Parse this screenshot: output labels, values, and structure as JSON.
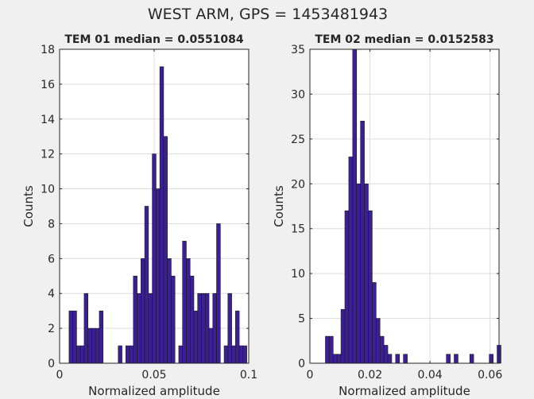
{
  "figure": {
    "suptitle": "WEST ARM, GPS = 1453481943"
  },
  "colors": {
    "bar_fill": "#3b1f96",
    "bar_edge": "#1a1a1a",
    "grid": "#dcdcdc",
    "axes_bg": "#ffffff",
    "figure_bg": "#f0f0f0"
  },
  "chart_data": [
    {
      "type": "bar",
      "title": "TEM 01 median = 0.0551084",
      "xlabel": "Normalized amplitude",
      "ylabel": "Counts",
      "xlim": [
        0,
        0.1
      ],
      "ylim": [
        0,
        18
      ],
      "xticks": [
        "0",
        "0.05",
        "0.1"
      ],
      "yticks": [
        "0",
        "2",
        "4",
        "6",
        "8",
        "10",
        "12",
        "14",
        "16",
        "18"
      ],
      "grid": true,
      "bin_width": 0.002,
      "x": [
        0.006,
        0.008,
        0.01,
        0.012,
        0.014,
        0.016,
        0.018,
        0.02,
        0.022,
        0.024,
        0.026,
        0.028,
        0.03,
        0.032,
        0.034,
        0.036,
        0.038,
        0.04,
        0.042,
        0.044,
        0.046,
        0.048,
        0.05,
        0.052,
        0.054,
        0.056,
        0.058,
        0.06,
        0.062,
        0.064,
        0.066,
        0.068,
        0.07,
        0.072,
        0.074,
        0.076,
        0.078,
        0.08,
        0.082,
        0.084,
        0.086,
        0.088,
        0.09,
        0.092,
        0.094,
        0.096,
        0.098
      ],
      "values": [
        3,
        3,
        1,
        1,
        4,
        2,
        2,
        2,
        3,
        0,
        0,
        0,
        0,
        1,
        0,
        1,
        1,
        5,
        4,
        6,
        9,
        4,
        12,
        10,
        17,
        13,
        6,
        5,
        0,
        1,
        7,
        6,
        5,
        3,
        4,
        4,
        4,
        2,
        4,
        8,
        0,
        1,
        4,
        1,
        3,
        1,
        1
      ]
    },
    {
      "type": "bar",
      "title": "TEM 02 median = 0.0152583",
      "xlabel": "Normalized amplitude",
      "ylabel": "Counts",
      "xlim": [
        0,
        0.063
      ],
      "ylim": [
        0,
        35
      ],
      "xticks": [
        "0",
        "0.02",
        "0.04",
        "0.06"
      ],
      "yticks": [
        "0",
        "5",
        "10",
        "15",
        "20",
        "25",
        "30",
        "35"
      ],
      "grid": true,
      "bin_width": 0.0013,
      "x": [
        0.0058,
        0.0071,
        0.0084,
        0.0097,
        0.011,
        0.0123,
        0.0136,
        0.0149,
        0.0162,
        0.0175,
        0.0188,
        0.0201,
        0.0214,
        0.0227,
        0.024,
        0.0253,
        0.0266,
        0.0279,
        0.0292,
        0.0305,
        0.0318,
        0.0331,
        0.0344,
        0.0357,
        0.037,
        0.0383,
        0.0396,
        0.0409,
        0.0422,
        0.0435,
        0.0448,
        0.0461,
        0.0474,
        0.0487,
        0.05,
        0.0513,
        0.0526,
        0.0539,
        0.0552,
        0.0565,
        0.0578,
        0.0591,
        0.0604,
        0.0617,
        0.063
      ],
      "values": [
        3,
        3,
        1,
        1,
        6,
        17,
        23,
        35,
        20,
        27,
        20,
        17,
        9,
        5,
        3,
        2,
        1,
        0,
        1,
        0,
        1,
        0,
        0,
        0,
        0,
        0,
        0,
        0,
        0,
        0,
        0,
        1,
        0,
        1,
        0,
        0,
        0,
        1,
        0,
        0,
        0,
        0,
        1,
        0,
        2
      ]
    }
  ]
}
